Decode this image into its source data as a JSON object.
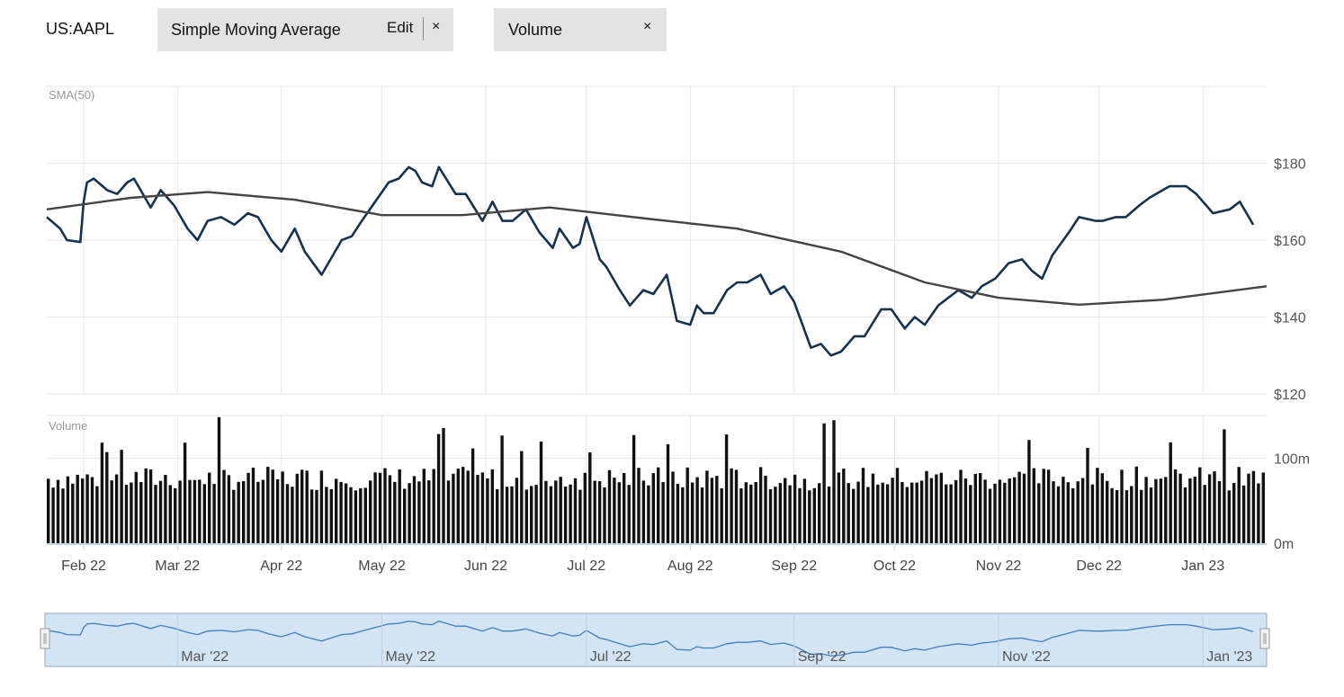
{
  "header": {
    "symbol": "US:AAPL",
    "indicator_chip": {
      "label": "Simple Moving Average",
      "edit_label": "Edit",
      "close_label": "×"
    },
    "volume_chip": {
      "label": "Volume",
      "close_label": "×"
    }
  },
  "colors": {
    "price_line": "#17324d",
    "sma_line": "#444444",
    "volume_bar": "#111111",
    "grid": "#e6e6e6",
    "navigator_fill": "#d3e4f5",
    "navigator_line": "#3f7fc0"
  },
  "chart_data": [
    {
      "type": "line",
      "panel": "price",
      "panel_label": "SMA(50)",
      "y_ticks": [
        "$120",
        "$140",
        "$160",
        "$180"
      ],
      "ylim": [
        120,
        200
      ],
      "x_ticks": [
        "Feb 22",
        "Mar 22",
        "Apr 22",
        "May 22",
        "Jun 22",
        "Jul 22",
        "Aug 22",
        "Sep 22",
        "Oct 22",
        "Nov 22",
        "Dec 22",
        "Jan 23"
      ],
      "x_range": [
        "2022-01-21",
        "2023-01-20"
      ],
      "grid": true,
      "series": [
        {
          "key": "price",
          "points": [
            [
              "2022-01-21",
              166
            ],
            [
              "2022-01-25",
              163
            ],
            [
              "2022-01-27",
              160
            ],
            [
              "2022-01-31",
              159.5
            ],
            [
              "2022-02-01",
              170
            ],
            [
              "2022-02-02",
              175
            ],
            [
              "2022-02-04",
              176
            ],
            [
              "2022-02-08",
              173
            ],
            [
              "2022-02-11",
              172
            ],
            [
              "2022-02-14",
              175
            ],
            [
              "2022-02-16",
              176
            ],
            [
              "2022-02-21",
              168.5
            ],
            [
              "2022-02-24",
              173
            ],
            [
              "2022-02-28",
              169
            ],
            [
              "2022-03-04",
              163
            ],
            [
              "2022-03-07",
              160
            ],
            [
              "2022-03-10",
              165
            ],
            [
              "2022-03-14",
              166
            ],
            [
              "2022-03-18",
              164
            ],
            [
              "2022-03-22",
              167
            ],
            [
              "2022-03-25",
              166
            ],
            [
              "2022-03-29",
              160
            ],
            [
              "2022-04-01",
              157
            ],
            [
              "2022-04-05",
              163
            ],
            [
              "2022-04-08",
              157
            ],
            [
              "2022-04-13",
              151
            ],
            [
              "2022-04-19",
              160
            ],
            [
              "2022-04-22",
              161
            ],
            [
              "2022-04-25",
              165
            ],
            [
              "2022-04-29",
              170
            ],
            [
              "2022-05-03",
              175
            ],
            [
              "2022-05-06",
              176
            ],
            [
              "2022-05-09",
              179
            ],
            [
              "2022-05-11",
              178
            ],
            [
              "2022-05-13",
              175
            ],
            [
              "2022-05-16",
              174
            ],
            [
              "2022-05-18",
              179
            ],
            [
              "2022-05-23",
              172
            ],
            [
              "2022-05-26",
              172
            ],
            [
              "2022-05-31",
              165
            ],
            [
              "2022-06-03",
              170
            ],
            [
              "2022-06-06",
              165
            ],
            [
              "2022-06-09",
              165
            ],
            [
              "2022-06-13",
              168
            ],
            [
              "2022-06-17",
              162
            ],
            [
              "2022-06-21",
              158
            ],
            [
              "2022-06-23",
              163
            ],
            [
              "2022-06-27",
              158
            ],
            [
              "2022-06-29",
              159
            ],
            [
              "2022-07-01",
              166
            ],
            [
              "2022-07-05",
              155
            ],
            [
              "2022-07-07",
              153
            ],
            [
              "2022-07-11",
              147
            ],
            [
              "2022-07-14",
              143
            ],
            [
              "2022-07-18",
              147
            ],
            [
              "2022-07-21",
              146
            ],
            [
              "2022-07-25",
              151
            ],
            [
              "2022-07-28",
              139
            ],
            [
              "2022-08-01",
              138
            ],
            [
              "2022-08-03",
              143
            ],
            [
              "2022-08-05",
              141
            ],
            [
              "2022-08-08",
              141
            ],
            [
              "2022-08-12",
              147
            ],
            [
              "2022-08-15",
              149
            ],
            [
              "2022-08-18",
              149
            ],
            [
              "2022-08-22",
              151
            ],
            [
              "2022-08-25",
              146
            ],
            [
              "2022-08-29",
              148
            ],
            [
              "2022-09-01",
              144
            ],
            [
              "2022-09-06",
              132
            ],
            [
              "2022-09-09",
              133
            ],
            [
              "2022-09-12",
              130
            ],
            [
              "2022-09-15",
              131
            ],
            [
              "2022-09-19",
              135
            ],
            [
              "2022-09-22",
              135
            ],
            [
              "2022-09-27",
              142
            ],
            [
              "2022-09-30",
              142
            ],
            [
              "2022-10-04",
              137
            ],
            [
              "2022-10-07",
              140
            ],
            [
              "2022-10-10",
              138
            ],
            [
              "2022-10-14",
              143
            ],
            [
              "2022-10-17",
              145
            ],
            [
              "2022-10-20",
              147
            ],
            [
              "2022-10-24",
              145
            ],
            [
              "2022-10-27",
              148
            ],
            [
              "2022-10-31",
              150
            ],
            [
              "2022-11-04",
              154
            ],
            [
              "2022-11-08",
              155
            ],
            [
              "2022-11-11",
              152
            ],
            [
              "2022-11-14",
              150
            ],
            [
              "2022-11-17",
              156
            ],
            [
              "2022-11-22",
              162
            ],
            [
              "2022-11-25",
              166
            ],
            [
              "2022-11-30",
              165
            ],
            [
              "2022-12-02",
              165
            ],
            [
              "2022-12-06",
              166
            ],
            [
              "2022-12-09",
              166
            ],
            [
              "2022-12-13",
              169
            ],
            [
              "2022-12-16",
              171
            ],
            [
              "2022-12-20",
              173
            ],
            [
              "2022-12-22",
              174
            ],
            [
              "2022-12-27",
              174
            ],
            [
              "2022-12-30",
              172
            ],
            [
              "2023-01-04",
              167
            ],
            [
              "2023-01-09",
              168
            ],
            [
              "2023-01-12",
              170
            ],
            [
              "2023-01-16",
              164
            ]
          ]
        },
        {
          "key": "sma",
          "points": [
            [
              "2022-01-21",
              168
            ],
            [
              "2022-02-15",
              171
            ],
            [
              "2022-03-10",
              172.5
            ],
            [
              "2022-04-05",
              170.5
            ],
            [
              "2022-05-01",
              166.5
            ],
            [
              "2022-05-25",
              166.5
            ],
            [
              "2022-06-20",
              168.5
            ],
            [
              "2022-07-20",
              165.5
            ],
            [
              "2022-08-15",
              163
            ],
            [
              "2022-09-15",
              157
            ],
            [
              "2022-10-10",
              149
            ],
            [
              "2022-11-01",
              145
            ],
            [
              "2022-11-25",
              143.2
            ],
            [
              "2022-12-20",
              144.5
            ],
            [
              "2023-01-20",
              148
            ]
          ]
        }
      ]
    },
    {
      "type": "bar",
      "panel": "volume",
      "panel_label": "Volume",
      "y_ticks": [
        "0m",
        "100m"
      ],
      "ylim": [
        0,
        150
      ]
    },
    {
      "type": "area",
      "panel": "navigator",
      "x_ticks": [
        "Mar '22",
        "May '22",
        "Jul '22",
        "Sep '22",
        "Nov '22",
        "Jan '23"
      ]
    }
  ]
}
